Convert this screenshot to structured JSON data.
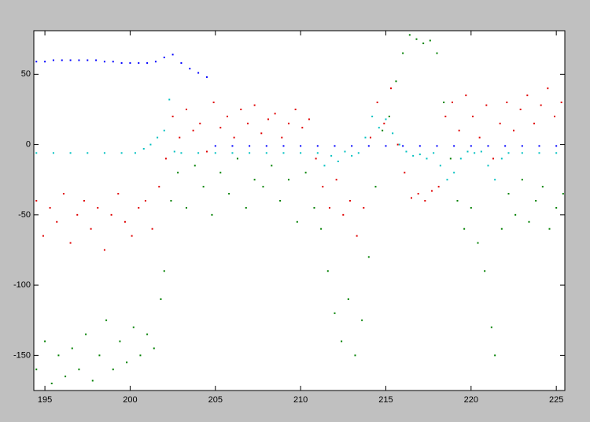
{
  "chart_data": {
    "type": "scatter",
    "xlim": [
      194.35,
      225.5
    ],
    "ylim": [
      -175,
      81
    ],
    "xticks": [
      195,
      200,
      205,
      210,
      215,
      220,
      225
    ],
    "yticks": [
      -150,
      -100,
      -50,
      0,
      50
    ],
    "series": [
      {
        "color": "#0000ff",
        "x": [
          194.5,
          195,
          195.5,
          196,
          196.5,
          197,
          197.5,
          198,
          198.5,
          199,
          199.5,
          200,
          200.5,
          201,
          201.5,
          202,
          202.5,
          203,
          203.5,
          204,
          204.5,
          205,
          206,
          207,
          208,
          209,
          210,
          211,
          212,
          213,
          214,
          215,
          216,
          217,
          218,
          219,
          220,
          221,
          222,
          223,
          224,
          225
        ],
        "values": [
          59,
          59,
          60,
          60,
          60,
          60,
          60,
          60,
          59,
          59,
          58,
          58,
          58,
          58,
          59,
          62,
          64,
          58,
          54,
          51,
          48,
          -1,
          -1,
          -1,
          -1,
          -1,
          -1,
          -1,
          -1,
          -1,
          -1,
          -1,
          -1,
          -1,
          -1,
          -1,
          -1,
          -1,
          -1,
          -1,
          -1,
          -1
        ]
      },
      {
        "color": "#00c0c0",
        "x": [
          194.5,
          195.5,
          196.5,
          197.5,
          198.5,
          199.5,
          200.3,
          200.8,
          201.2,
          201.6,
          202,
          202.3,
          202.6,
          203,
          204,
          205,
          206,
          207,
          208,
          209,
          210,
          211,
          211.4,
          211.8,
          212.2,
          212.6,
          213,
          213.4,
          213.8,
          214.2,
          214.6,
          215,
          215.4,
          215.8,
          216.2,
          216.6,
          217,
          217.4,
          217.8,
          218.2,
          218.6,
          219,
          219.4,
          219.8,
          220.2,
          220.6,
          221,
          221.4,
          221.8,
          222.2,
          223,
          224,
          225
        ],
        "values": [
          -6,
          -6,
          -6,
          -6,
          -6,
          -6,
          -6,
          -3,
          0,
          5,
          10,
          32,
          -5,
          -6,
          -6,
          -6,
          -6,
          -6,
          -6,
          -6,
          -6,
          -6,
          -15,
          -8,
          -12,
          -5,
          -8,
          -6,
          5,
          20,
          12,
          18,
          8,
          0,
          -5,
          -8,
          -7,
          -10,
          -6,
          -15,
          -25,
          -20,
          -10,
          -5,
          -6,
          -5,
          -15,
          -25,
          -10,
          -6,
          -6,
          -6,
          -6
        ]
      },
      {
        "color": "#e00000",
        "x": [
          194.5,
          194.9,
          195.3,
          195.7,
          196.1,
          196.5,
          196.9,
          197.3,
          197.7,
          198.1,
          198.5,
          198.9,
          199.3,
          199.7,
          200.1,
          200.5,
          200.9,
          201.3,
          201.7,
          202.1,
          202.5,
          202.9,
          203.3,
          203.7,
          204.1,
          204.5,
          204.9,
          205.3,
          205.7,
          206.1,
          206.5,
          206.9,
          207.3,
          207.7,
          208.1,
          208.5,
          208.9,
          209.3,
          209.7,
          210.1,
          210.5,
          210.9,
          211.3,
          211.7,
          212.1,
          212.5,
          212.9,
          213.3,
          213.7,
          214.1,
          214.5,
          214.9,
          215.3,
          215.7,
          216.1,
          216.5,
          216.9,
          217.3,
          217.7,
          218.1,
          218.5,
          218.9,
          219.3,
          219.7,
          220.1,
          220.5,
          220.9,
          221.3,
          221.7,
          222.1,
          222.5,
          222.9,
          223.3,
          223.7,
          224.1,
          224.5,
          224.9,
          225.3
        ],
        "values": [
          -40,
          -65,
          -45,
          -55,
          -35,
          -70,
          -50,
          -40,
          -60,
          -45,
          -75,
          -50,
          -35,
          -55,
          -65,
          -45,
          -40,
          -60,
          -30,
          -10,
          20,
          5,
          25,
          10,
          15,
          -5,
          30,
          12,
          20,
          5,
          25,
          15,
          28,
          8,
          18,
          22,
          5,
          15,
          25,
          12,
          18,
          -10,
          -30,
          -45,
          -25,
          -50,
          -40,
          -65,
          -45,
          5,
          30,
          15,
          40,
          0,
          -20,
          -38,
          -35,
          -40,
          -33,
          -30,
          20,
          30,
          10,
          35,
          20,
          5,
          28,
          -10,
          15,
          30,
          10,
          25,
          35,
          15,
          28,
          40,
          20,
          30
        ]
      },
      {
        "color": "#008000",
        "x": [
          194.5,
          195,
          195.4,
          195.8,
          196.2,
          196.6,
          197,
          197.4,
          197.8,
          198.2,
          198.6,
          199,
          199.4,
          199.8,
          200.2,
          200.6,
          201,
          201.4,
          201.8,
          202,
          202.4,
          202.8,
          203.3,
          203.8,
          204.3,
          204.8,
          205.3,
          205.8,
          206.3,
          206.8,
          207.3,
          207.8,
          208.3,
          208.8,
          209.3,
          209.8,
          210.3,
          210.8,
          211.2,
          211.6,
          212,
          212.4,
          212.8,
          213.2,
          213.6,
          214,
          214.4,
          214.8,
          215.2,
          215.6,
          216,
          216.4,
          216.8,
          217.2,
          217.6,
          218,
          218.4,
          218.8,
          219.2,
          219.6,
          220,
          220.4,
          220.8,
          221.2,
          221.4,
          221.8,
          222.2,
          222.6,
          223,
          223.4,
          223.8,
          224.2,
          224.6,
          225,
          225.4
        ],
        "values": [
          -160,
          -140,
          -170,
          -150,
          -165,
          -145,
          -160,
          -135,
          -168,
          -150,
          -125,
          -160,
          -140,
          -155,
          -130,
          -150,
          -135,
          -145,
          -110,
          -90,
          -40,
          -20,
          -45,
          -15,
          -30,
          -50,
          -20,
          -35,
          -10,
          -45,
          -25,
          -30,
          -15,
          -40,
          -25,
          -55,
          -20,
          -45,
          -60,
          -90,
          -120,
          -140,
          -110,
          -150,
          -125,
          -80,
          -30,
          10,
          20,
          45,
          65,
          78,
          75,
          72,
          74,
          65,
          30,
          -10,
          -40,
          -60,
          -45,
          -70,
          -90,
          -130,
          -150,
          -60,
          -35,
          -50,
          -25,
          -55,
          -40,
          -30,
          -60,
          -45,
          -35
        ]
      }
    ]
  }
}
